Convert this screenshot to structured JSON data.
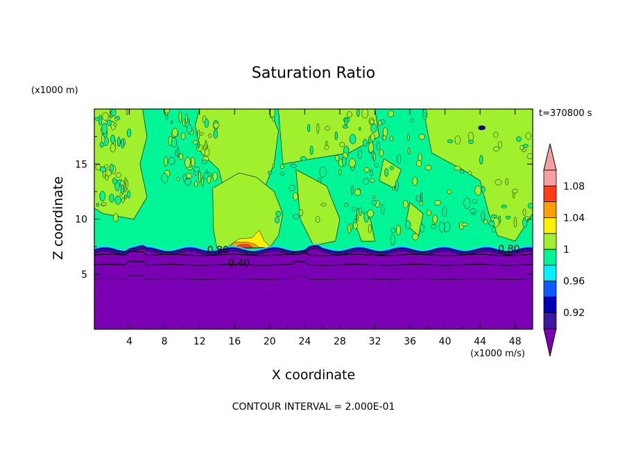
{
  "chart_data": {
    "type": "contour",
    "title": "Saturation Ratio",
    "xlabel": "X coordinate",
    "ylabel": "Z coordinate",
    "x_unit": "(x1000 m/s)",
    "y_unit": "(x1000 m)",
    "time_label": "t=370800 s",
    "footer": "CONTOUR INTERVAL = 2.000E-01",
    "x_range": [
      0,
      50
    ],
    "y_range": [
      0,
      20
    ],
    "x_ticks": [
      4,
      8,
      12,
      16,
      20,
      24,
      28,
      32,
      36,
      40,
      44,
      48
    ],
    "y_ticks": [
      5,
      10,
      15
    ],
    "contour_labels": [
      {
        "text": "0.80",
        "x": 14.1,
        "z": 6.9
      },
      {
        "text": "0.40",
        "x": 16.5,
        "z": 5.7
      },
      {
        "text": "0.80",
        "x": 47.3,
        "z": 7.0
      }
    ],
    "colorbar": {
      "levels": [
        0.9,
        0.92,
        0.94,
        0.96,
        0.98,
        1.0,
        1.02,
        1.04,
        1.06,
        1.08,
        1.1
      ],
      "labels": [
        "0.92",
        "0.96",
        "1",
        "1.04",
        "1.08"
      ],
      "colors": {
        "under": "#7b00b4",
        "b0": "#3c1aa0",
        "b1": "#0000b4",
        "b2": "#0a5aff",
        "b3": "#00f0ff",
        "b4": "#00f596",
        "b5": "#a0f02d",
        "b6": "#fff000",
        "b7": "#ffa000",
        "b8": "#ff3c14",
        "over": "#f5a0a0"
      }
    }
  }
}
